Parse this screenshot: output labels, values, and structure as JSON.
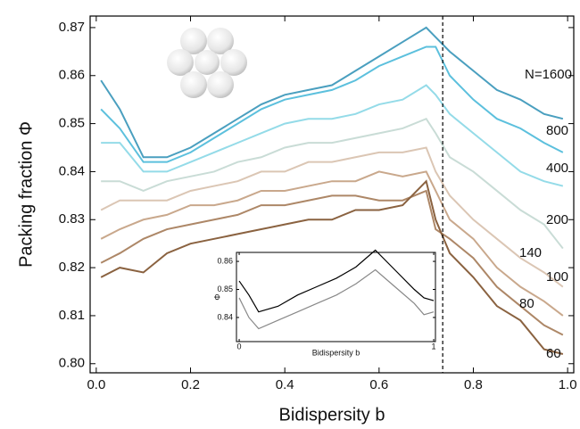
{
  "chart_data": [
    {
      "type": "line",
      "xlabel": "Bidispersity b",
      "ylabel": "Packing fraction Φ",
      "x": [
        0.01,
        0.05,
        0.1,
        0.15,
        0.2,
        0.25,
        0.3,
        0.35,
        0.4,
        0.45,
        0.5,
        0.55,
        0.6,
        0.65,
        0.7,
        0.72,
        0.75,
        0.8,
        0.85,
        0.9,
        0.95,
        0.99
      ],
      "series": [
        {
          "name": "N=1600",
          "color": "#4a9fbf",
          "values": [
            0.859,
            0.853,
            0.843,
            0.843,
            0.845,
            0.848,
            0.851,
            0.854,
            0.856,
            0.857,
            0.858,
            0.861,
            0.864,
            0.867,
            0.87,
            0.868,
            0.865,
            0.861,
            0.857,
            0.855,
            0.852,
            0.851
          ]
        },
        {
          "name": "800",
          "color": "#5cc0dd",
          "values": [
            0.853,
            0.849,
            0.842,
            0.842,
            0.844,
            0.847,
            0.85,
            0.853,
            0.855,
            0.856,
            0.857,
            0.859,
            0.862,
            0.864,
            0.866,
            0.866,
            0.86,
            0.855,
            0.851,
            0.849,
            0.846,
            0.844
          ]
        },
        {
          "name": "400",
          "color": "#94dbe8",
          "values": [
            0.846,
            0.846,
            0.84,
            0.84,
            0.842,
            0.844,
            0.846,
            0.848,
            0.85,
            0.851,
            0.851,
            0.852,
            0.854,
            0.855,
            0.858,
            0.856,
            0.852,
            0.848,
            0.844,
            0.84,
            0.838,
            0.837
          ]
        },
        {
          "name": "200",
          "color": "#c9dcd6",
          "values": [
            0.838,
            0.838,
            0.836,
            0.838,
            0.839,
            0.84,
            0.842,
            0.843,
            0.845,
            0.846,
            0.846,
            0.847,
            0.848,
            0.849,
            0.851,
            0.848,
            0.843,
            0.84,
            0.836,
            0.832,
            0.829,
            0.824
          ]
        },
        {
          "name": "140",
          "color": "#dbc6b4",
          "values": [
            0.832,
            0.834,
            0.834,
            0.834,
            0.836,
            0.837,
            0.838,
            0.84,
            0.84,
            0.842,
            0.842,
            0.843,
            0.844,
            0.844,
            0.845,
            0.84,
            0.835,
            0.83,
            0.826,
            0.822,
            0.819,
            0.816
          ]
        },
        {
          "name": "100",
          "color": "#c9a88c",
          "values": [
            0.826,
            0.828,
            0.83,
            0.831,
            0.833,
            0.833,
            0.834,
            0.836,
            0.836,
            0.837,
            0.838,
            0.838,
            0.84,
            0.839,
            0.84,
            0.836,
            0.83,
            0.826,
            0.82,
            0.816,
            0.813,
            0.81
          ]
        },
        {
          "name": "80",
          "color": "#ad8767",
          "values": [
            0.821,
            0.823,
            0.826,
            0.828,
            0.829,
            0.83,
            0.831,
            0.833,
            0.833,
            0.834,
            0.835,
            0.835,
            0.834,
            0.834,
            0.836,
            0.828,
            0.826,
            0.822,
            0.816,
            0.812,
            0.808,
            0.806
          ]
        },
        {
          "name": "60",
          "color": "#8a6240",
          "values": [
            0.818,
            0.82,
            0.819,
            0.823,
            0.825,
            0.826,
            0.827,
            0.828,
            0.829,
            0.83,
            0.83,
            0.832,
            0.832,
            0.833,
            0.838,
            0.83,
            0.823,
            0.818,
            0.812,
            0.809,
            0.803,
            0.802
          ]
        }
      ],
      "xlim": [
        -0.013,
        1.013
      ],
      "ylim": [
        0.7981,
        0.8724
      ],
      "xticks": [
        {
          "value": 0,
          "label": "0.0"
        },
        0.2,
        0.4,
        0.6,
        0.8,
        {
          "value": 1,
          "label": "1.0"
        }
      ],
      "yticks": [
        {
          "value": 0.8,
          "label": "0.80"
        },
        0.81,
        0.82,
        0.83,
        0.84,
        0.85,
        0.86,
        0.87
      ],
      "vline": 0.735
    },
    {
      "type": "line",
      "xlabel": "Bidispersity b",
      "ylabel": "Φ",
      "x": [
        0,
        0.05,
        0.1,
        0.2,
        0.3,
        0.4,
        0.5,
        0.6,
        0.7,
        0.8,
        0.9,
        0.95,
        1
      ],
      "series": [
        {
          "color": "#000000",
          "values": [
            0.853,
            0.848,
            0.842,
            0.844,
            0.848,
            0.851,
            0.854,
            0.858,
            0.864,
            0.857,
            0.85,
            0.847,
            0.846
          ]
        },
        {
          "color": "#888888",
          "values": [
            0.847,
            0.84,
            0.836,
            0.839,
            0.842,
            0.845,
            0.848,
            0.852,
            0.857,
            0.851,
            0.845,
            0.841,
            0.842
          ]
        }
      ],
      "xlim": [
        -0.014,
        1.009
      ],
      "ylim": [
        0.8314,
        0.8632
      ],
      "xticks": [
        0,
        1
      ],
      "yticks": [
        0.84,
        0.85,
        0.86
      ]
    }
  ]
}
